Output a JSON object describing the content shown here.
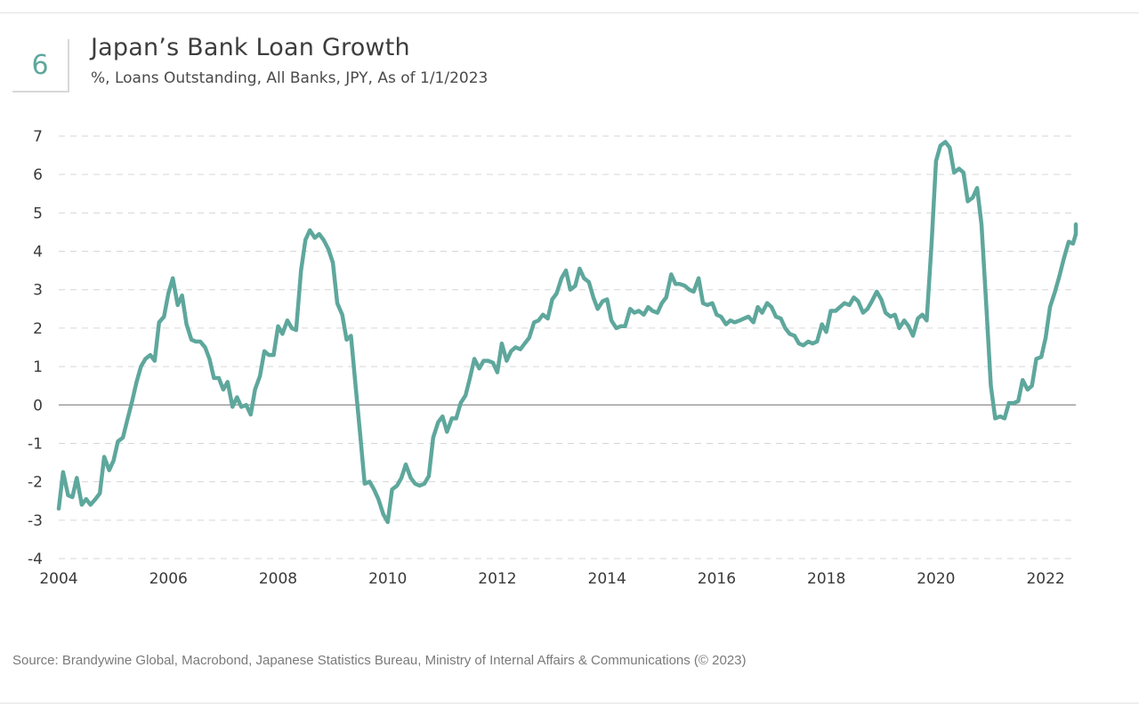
{
  "header": {
    "figure_number": "6",
    "title": "Japan’s Bank Loan Growth",
    "subtitle": "%, Loans Outstanding, All Banks, JPY, As of 1/1/2023"
  },
  "footer": {
    "source": "Source: Brandywine Global, Macrobond, Japanese Statistics Bureau, Ministry of Internal Affairs & Communications (© 2023)"
  },
  "colors": {
    "line": "#5ea79c",
    "grid": "#d6d6d6",
    "zero_line": "#8a8a8a"
  },
  "chart_data": {
    "type": "line",
    "title": "Japan’s Bank Loan Growth",
    "subtitle": "%, Loans Outstanding, All Banks, JPY, As of 1/1/2023",
    "xlabel": "",
    "ylabel": "",
    "xlim": [
      2004,
      2022.55
    ],
    "ylim": [
      -4,
      7
    ],
    "x_ticks": [
      "2004",
      "2006",
      "2008",
      "2010",
      "2012",
      "2014",
      "2016",
      "2018",
      "2020",
      "2022"
    ],
    "y_ticks": [
      "7",
      "6",
      "5",
      "4",
      "3",
      "2",
      "1",
      "0",
      "-1",
      "-2",
      "-3",
      "-4"
    ],
    "grid": "horizontal dashed",
    "legend": "none",
    "series": [
      {
        "points": [
          [
            2004.0,
            -2.7
          ],
          [
            2004.08,
            -1.75
          ],
          [
            2004.17,
            -2.35
          ],
          [
            2004.25,
            -2.4
          ],
          [
            2004.33,
            -1.9
          ],
          [
            2004.42,
            -2.6
          ],
          [
            2004.5,
            -2.45
          ],
          [
            2004.58,
            -2.6
          ],
          [
            2004.67,
            -2.45
          ],
          [
            2004.75,
            -2.3
          ],
          [
            2004.83,
            -1.35
          ],
          [
            2004.92,
            -1.7
          ],
          [
            2005.0,
            -1.45
          ],
          [
            2005.08,
            -0.95
          ],
          [
            2005.17,
            -0.85
          ],
          [
            2005.25,
            -0.4
          ],
          [
            2005.33,
            0.05
          ],
          [
            2005.42,
            0.6
          ],
          [
            2005.5,
            1.0
          ],
          [
            2005.58,
            1.2
          ],
          [
            2005.67,
            1.3
          ],
          [
            2005.75,
            1.15
          ],
          [
            2005.83,
            2.15
          ],
          [
            2005.92,
            2.3
          ],
          [
            2006.0,
            2.9
          ],
          [
            2006.08,
            3.3
          ],
          [
            2006.17,
            2.6
          ],
          [
            2006.25,
            2.85
          ],
          [
            2006.33,
            2.1
          ],
          [
            2006.42,
            1.7
          ],
          [
            2006.5,
            1.65
          ],
          [
            2006.58,
            1.65
          ],
          [
            2006.67,
            1.5
          ],
          [
            2006.75,
            1.2
          ],
          [
            2006.83,
            0.7
          ],
          [
            2006.92,
            0.7
          ],
          [
            2007.0,
            0.4
          ],
          [
            2007.08,
            0.6
          ],
          [
            2007.17,
            -0.05
          ],
          [
            2007.25,
            0.2
          ],
          [
            2007.33,
            -0.05
          ],
          [
            2007.42,
            0.0
          ],
          [
            2007.5,
            -0.25
          ],
          [
            2007.58,
            0.4
          ],
          [
            2007.67,
            0.75
          ],
          [
            2007.75,
            1.4
          ],
          [
            2007.83,
            1.3
          ],
          [
            2007.92,
            1.3
          ],
          [
            2008.0,
            2.05
          ],
          [
            2008.08,
            1.85
          ],
          [
            2008.17,
            2.2
          ],
          [
            2008.25,
            2.0
          ],
          [
            2008.33,
            1.95
          ],
          [
            2008.42,
            3.5
          ],
          [
            2008.5,
            4.3
          ],
          [
            2008.58,
            4.55
          ],
          [
            2008.67,
            4.35
          ],
          [
            2008.75,
            4.45
          ],
          [
            2008.83,
            4.3
          ],
          [
            2008.92,
            4.05
          ],
          [
            2009.0,
            3.7
          ],
          [
            2009.08,
            2.65
          ],
          [
            2009.17,
            2.35
          ],
          [
            2009.25,
            1.7
          ],
          [
            2009.33,
            1.8
          ],
          [
            2009.42,
            0.4
          ],
          [
            2009.5,
            -0.8
          ],
          [
            2009.58,
            -2.05
          ],
          [
            2009.67,
            -2.0
          ],
          [
            2009.75,
            -2.2
          ],
          [
            2009.83,
            -2.45
          ],
          [
            2009.92,
            -2.85
          ],
          [
            2010.0,
            -3.05
          ],
          [
            2010.08,
            -2.2
          ],
          [
            2010.17,
            -2.1
          ],
          [
            2010.25,
            -1.9
          ],
          [
            2010.33,
            -1.55
          ],
          [
            2010.42,
            -1.9
          ],
          [
            2010.5,
            -2.05
          ],
          [
            2010.58,
            -2.1
          ],
          [
            2010.67,
            -2.05
          ],
          [
            2010.75,
            -1.85
          ],
          [
            2010.83,
            -0.85
          ],
          [
            2010.92,
            -0.45
          ],
          [
            2011.0,
            -0.3
          ],
          [
            2011.08,
            -0.7
          ],
          [
            2011.17,
            -0.35
          ],
          [
            2011.25,
            -0.35
          ],
          [
            2011.33,
            0.05
          ],
          [
            2011.42,
            0.25
          ],
          [
            2011.5,
            0.7
          ],
          [
            2011.58,
            1.2
          ],
          [
            2011.67,
            0.95
          ],
          [
            2011.75,
            1.15
          ],
          [
            2011.83,
            1.15
          ],
          [
            2011.92,
            1.1
          ],
          [
            2012.0,
            0.85
          ],
          [
            2012.08,
            1.6
          ],
          [
            2012.17,
            1.15
          ],
          [
            2012.25,
            1.4
          ],
          [
            2012.33,
            1.5
          ],
          [
            2012.42,
            1.45
          ],
          [
            2012.5,
            1.6
          ],
          [
            2012.58,
            1.75
          ],
          [
            2012.67,
            2.15
          ],
          [
            2012.75,
            2.2
          ],
          [
            2012.83,
            2.35
          ],
          [
            2012.92,
            2.25
          ],
          [
            2013.0,
            2.75
          ],
          [
            2013.08,
            2.9
          ],
          [
            2013.17,
            3.3
          ],
          [
            2013.25,
            3.5
          ],
          [
            2013.33,
            3.0
          ],
          [
            2013.42,
            3.1
          ],
          [
            2013.5,
            3.55
          ],
          [
            2013.58,
            3.3
          ],
          [
            2013.67,
            3.2
          ],
          [
            2013.75,
            2.8
          ],
          [
            2013.83,
            2.5
          ],
          [
            2013.92,
            2.7
          ],
          [
            2014.0,
            2.75
          ],
          [
            2014.08,
            2.2
          ],
          [
            2014.17,
            2.0
          ],
          [
            2014.25,
            2.05
          ],
          [
            2014.33,
            2.05
          ],
          [
            2014.42,
            2.5
          ],
          [
            2014.5,
            2.4
          ],
          [
            2014.58,
            2.45
          ],
          [
            2014.67,
            2.35
          ],
          [
            2014.75,
            2.55
          ],
          [
            2014.83,
            2.45
          ],
          [
            2014.92,
            2.4
          ],
          [
            2015.0,
            2.65
          ],
          [
            2015.08,
            2.8
          ],
          [
            2015.17,
            3.4
          ],
          [
            2015.25,
            3.15
          ],
          [
            2015.33,
            3.15
          ],
          [
            2015.42,
            3.1
          ],
          [
            2015.5,
            3.0
          ],
          [
            2015.58,
            2.95
          ],
          [
            2015.67,
            3.3
          ],
          [
            2015.75,
            2.65
          ],
          [
            2015.83,
            2.6
          ],
          [
            2015.92,
            2.65
          ],
          [
            2016.0,
            2.35
          ],
          [
            2016.08,
            2.3
          ],
          [
            2016.17,
            2.1
          ],
          [
            2016.25,
            2.2
          ],
          [
            2016.33,
            2.15
          ],
          [
            2016.42,
            2.2
          ],
          [
            2016.5,
            2.25
          ],
          [
            2016.58,
            2.3
          ],
          [
            2016.67,
            2.15
          ],
          [
            2016.75,
            2.55
          ],
          [
            2016.83,
            2.4
          ],
          [
            2016.92,
            2.65
          ],
          [
            2017.0,
            2.55
          ],
          [
            2017.08,
            2.3
          ],
          [
            2017.17,
            2.25
          ],
          [
            2017.25,
            2.0
          ],
          [
            2017.33,
            1.85
          ],
          [
            2017.42,
            1.8
          ],
          [
            2017.5,
            1.6
          ],
          [
            2017.58,
            1.55
          ],
          [
            2017.67,
            1.65
          ],
          [
            2017.75,
            1.6
          ],
          [
            2017.83,
            1.65
          ],
          [
            2017.92,
            2.1
          ],
          [
            2018.0,
            1.9
          ],
          [
            2018.08,
            2.45
          ],
          [
            2018.17,
            2.45
          ],
          [
            2018.25,
            2.55
          ],
          [
            2018.33,
            2.65
          ],
          [
            2018.42,
            2.6
          ],
          [
            2018.5,
            2.8
          ],
          [
            2018.58,
            2.7
          ],
          [
            2018.67,
            2.4
          ],
          [
            2018.75,
            2.5
          ],
          [
            2018.83,
            2.7
          ],
          [
            2018.92,
            2.95
          ],
          [
            2019.0,
            2.75
          ],
          [
            2019.08,
            2.4
          ],
          [
            2019.17,
            2.3
          ],
          [
            2019.25,
            2.35
          ],
          [
            2019.33,
            2.0
          ],
          [
            2019.42,
            2.2
          ],
          [
            2019.5,
            2.05
          ],
          [
            2019.58,
            1.8
          ],
          [
            2019.67,
            2.25
          ],
          [
            2019.75,
            2.35
          ],
          [
            2019.83,
            2.2
          ],
          [
            2019.92,
            4.2
          ],
          [
            2020.0,
            6.35
          ],
          [
            2020.08,
            6.75
          ],
          [
            2020.17,
            6.85
          ],
          [
            2020.25,
            6.7
          ],
          [
            2020.33,
            6.05
          ],
          [
            2020.42,
            6.15
          ],
          [
            2020.5,
            6.05
          ],
          [
            2020.58,
            5.3
          ],
          [
            2020.67,
            5.4
          ],
          [
            2020.75,
            5.65
          ],
          [
            2020.83,
            4.7
          ],
          [
            2020.92,
            2.5
          ],
          [
            2021.0,
            0.5
          ],
          [
            2021.08,
            -0.35
          ],
          [
            2021.17,
            -0.3
          ],
          [
            2021.25,
            -0.35
          ],
          [
            2021.33,
            0.05
          ],
          [
            2021.42,
            0.05
          ],
          [
            2021.5,
            0.1
          ],
          [
            2021.58,
            0.65
          ],
          [
            2021.67,
            0.4
          ],
          [
            2021.75,
            0.5
          ],
          [
            2021.83,
            1.2
          ],
          [
            2021.92,
            1.25
          ],
          [
            2022.0,
            1.75
          ],
          [
            2022.08,
            2.55
          ],
          [
            2022.17,
            2.95
          ],
          [
            2022.25,
            3.35
          ],
          [
            2022.33,
            3.8
          ],
          [
            2022.42,
            4.25
          ],
          [
            2022.5,
            4.2
          ],
          [
            2022.55,
            4.45
          ],
          [
            2022.55,
            4.7
          ]
        ]
      }
    ]
  }
}
